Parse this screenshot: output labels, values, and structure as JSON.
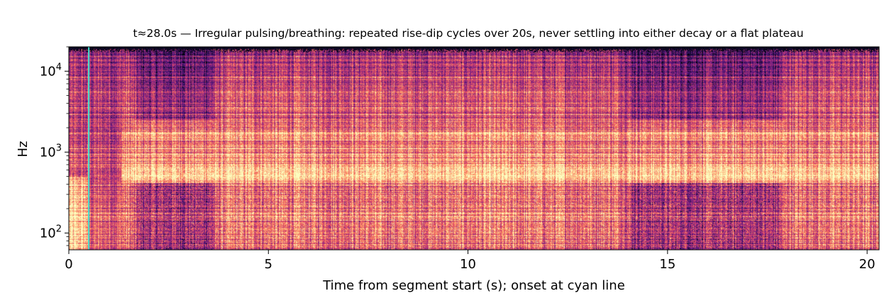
{
  "chart_data": {
    "type": "heatmap",
    "title": "t≈28.0s — Irregular pulsing/breathing: repeated rise-dip cycles over 20s, never settling into either decay or a flat plateau",
    "xlabel": "Time from segment start (s); onset at cyan line",
    "ylabel": "Hz",
    "xlim": [
      0,
      20.3
    ],
    "ylim": [
      62,
      20000
    ],
    "yscale": "log",
    "x_ticks": [
      0,
      5,
      10,
      15,
      20
    ],
    "y_ticks": [
      {
        "value": 100,
        "base": "10",
        "exp": "2"
      },
      {
        "value": 1000,
        "base": "10",
        "exp": "3"
      },
      {
        "value": 10000,
        "base": "10",
        "exp": "4"
      }
    ],
    "colormap": "magma",
    "onset_time": 0.5,
    "onset_color": "#40e0d0",
    "bright_band_hz": [
      450,
      650
    ],
    "quiet_periods_s": [
      [
        1.5,
        3.8
      ],
      [
        13.9,
        18.0
      ]
    ],
    "upper_cutoff_hz": 17000,
    "grid": false
  }
}
